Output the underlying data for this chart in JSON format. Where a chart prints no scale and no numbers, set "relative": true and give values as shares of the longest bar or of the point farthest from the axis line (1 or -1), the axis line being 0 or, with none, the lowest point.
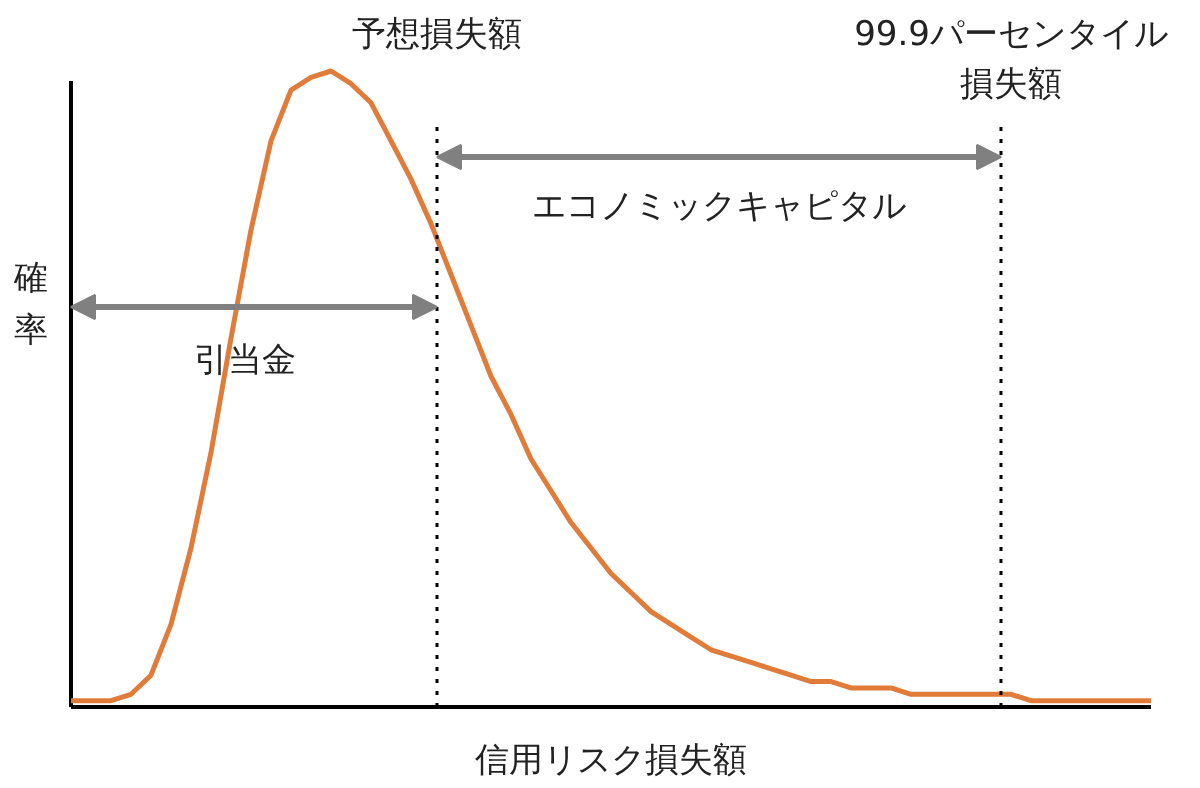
{
  "chart_data": {
    "type": "line",
    "relative": true,
    "xlabel": "信用リスク損失額",
    "ylabel": "確率",
    "categories": [
      null,
      null,
      null,
      null,
      null,
      null,
      null,
      null,
      null,
      null,
      null,
      null,
      null,
      null,
      null,
      null,
      null,
      null,
      null,
      null,
      null,
      null,
      null,
      null,
      null,
      null,
      null,
      null,
      null,
      null,
      null,
      null,
      null,
      null,
      null,
      null,
      null,
      null,
      null,
      null,
      null,
      null,
      null,
      null,
      null,
      null,
      null,
      null,
      null,
      null,
      null,
      null,
      null,
      null,
      null
    ],
    "series": [
      {
        "color": "#e07b39",
        "values": [
          0.01,
          0.01,
          0.01,
          0.02,
          0.05,
          0.13,
          0.25,
          0.4,
          0.58,
          0.75,
          0.89,
          0.97,
          0.99,
          1.0,
          0.98,
          0.95,
          0.89,
          0.83,
          0.76,
          0.68,
          0.6,
          0.52,
          0.46,
          0.39,
          0.34,
          0.29,
          0.25,
          0.21,
          0.18,
          0.15,
          0.13,
          0.11,
          0.09,
          0.08,
          0.07,
          0.06,
          0.05,
          0.04,
          0.04,
          0.03,
          0.03,
          0.03,
          0.02,
          0.02,
          0.02,
          0.02,
          0.02,
          0.02,
          0.01,
          0.01,
          0.01,
          0.01,
          0.01,
          0.01,
          0.01
        ]
      }
    ],
    "annotations": [
      "予想損失額",
      "99.9パーセンタイル損失額",
      "エコノミックキャピタル",
      "引当金"
    ]
  }
}
